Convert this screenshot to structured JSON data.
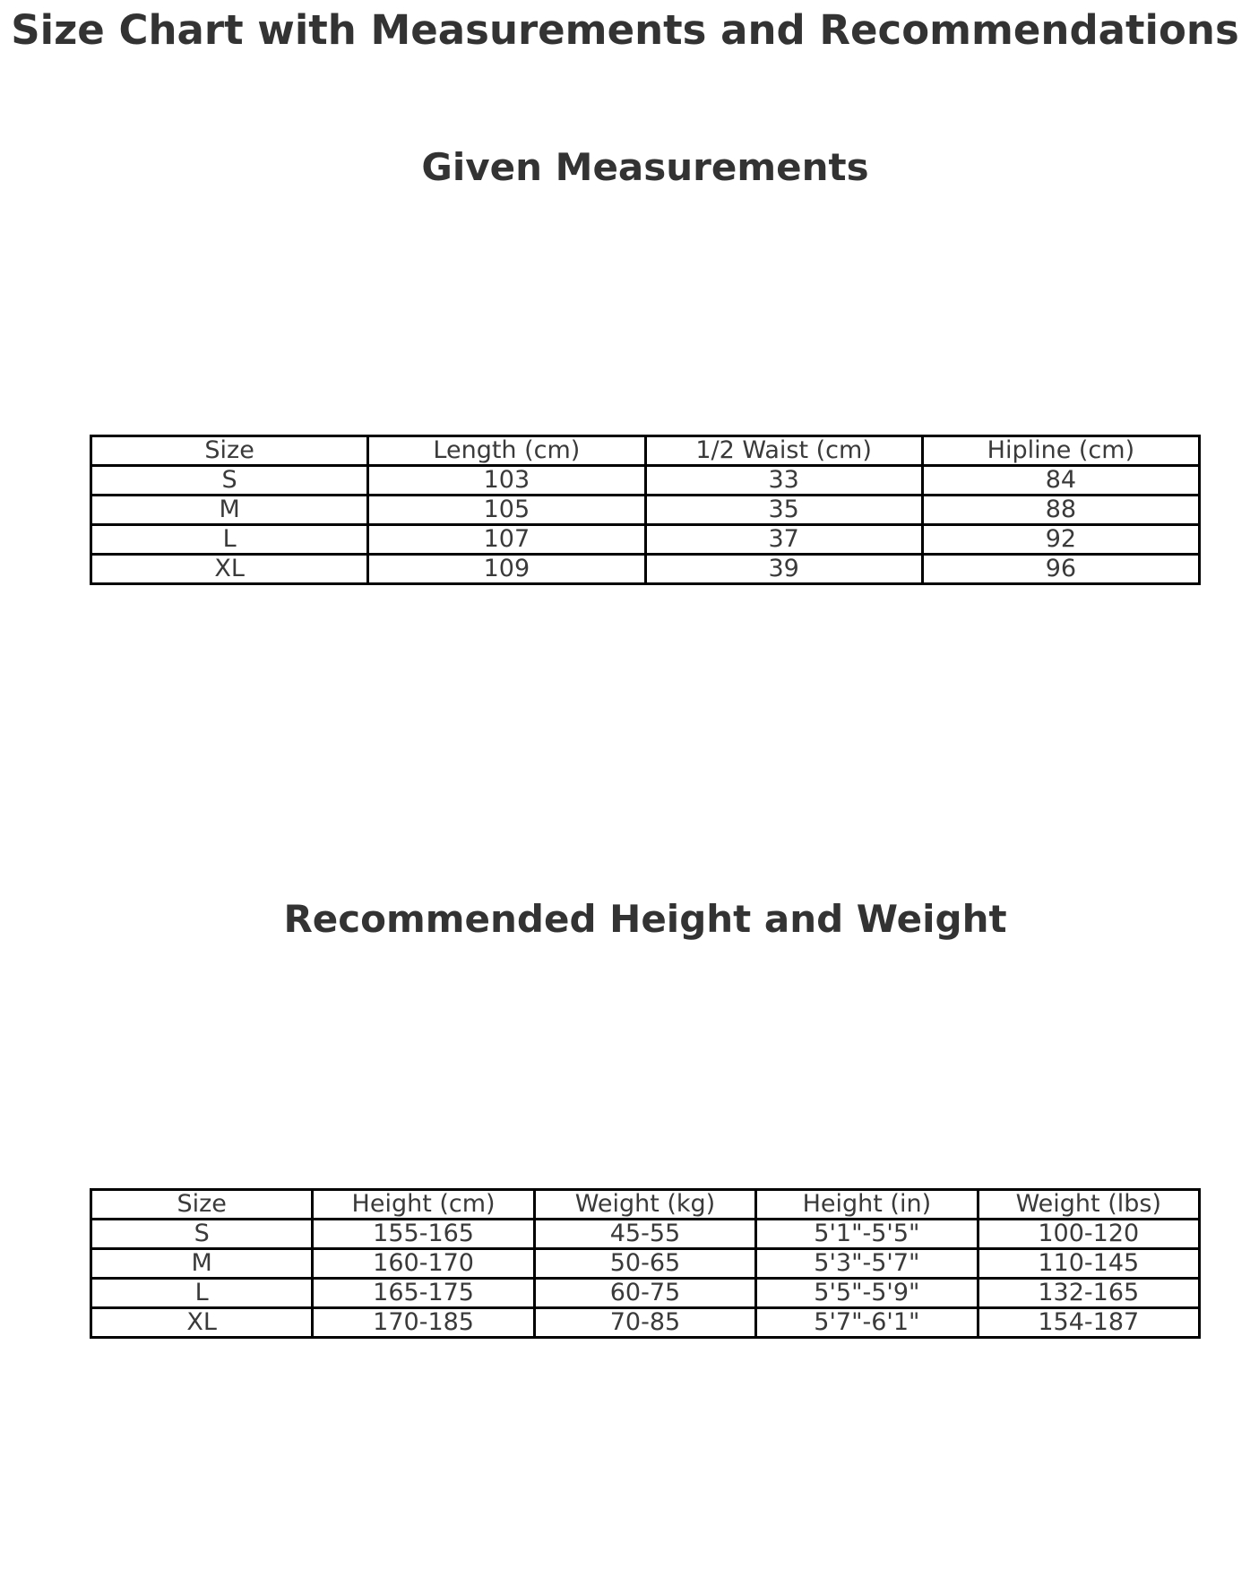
{
  "page_title": "Size Chart with Measurements and Recommendations",
  "chart_data": [
    {
      "type": "table",
      "title": "Given Measurements",
      "columns": [
        "Size",
        "Length (cm)",
        "1/2 Waist (cm)",
        "Hipline (cm)"
      ],
      "rows": [
        [
          "S",
          "103",
          "33",
          "84"
        ],
        [
          "M",
          "105",
          "35",
          "88"
        ],
        [
          "L",
          "107",
          "37",
          "92"
        ],
        [
          "XL",
          "109",
          "39",
          "96"
        ]
      ]
    },
    {
      "type": "table",
      "title": "Recommended Height and Weight",
      "columns": [
        "Size",
        "Height (cm)",
        "Weight (kg)",
        "Height (in)",
        "Weight (lbs)"
      ],
      "rows": [
        [
          "S",
          "155-165",
          "45-55",
          "5'1\"-5'5\"",
          "100-120"
        ],
        [
          "M",
          "160-170",
          "50-65",
          "5'3\"-5'7\"",
          "110-145"
        ],
        [
          "L",
          "165-175",
          "60-75",
          "5'5\"-5'9\"",
          "132-165"
        ],
        [
          "XL",
          "170-185",
          "70-85",
          "5'7\"-6'1\"",
          "154-187"
        ]
      ]
    }
  ],
  "colors": {
    "text": "#3a3a3a",
    "title_text": "#333333",
    "border": "#000000",
    "background": "#ffffff"
  }
}
